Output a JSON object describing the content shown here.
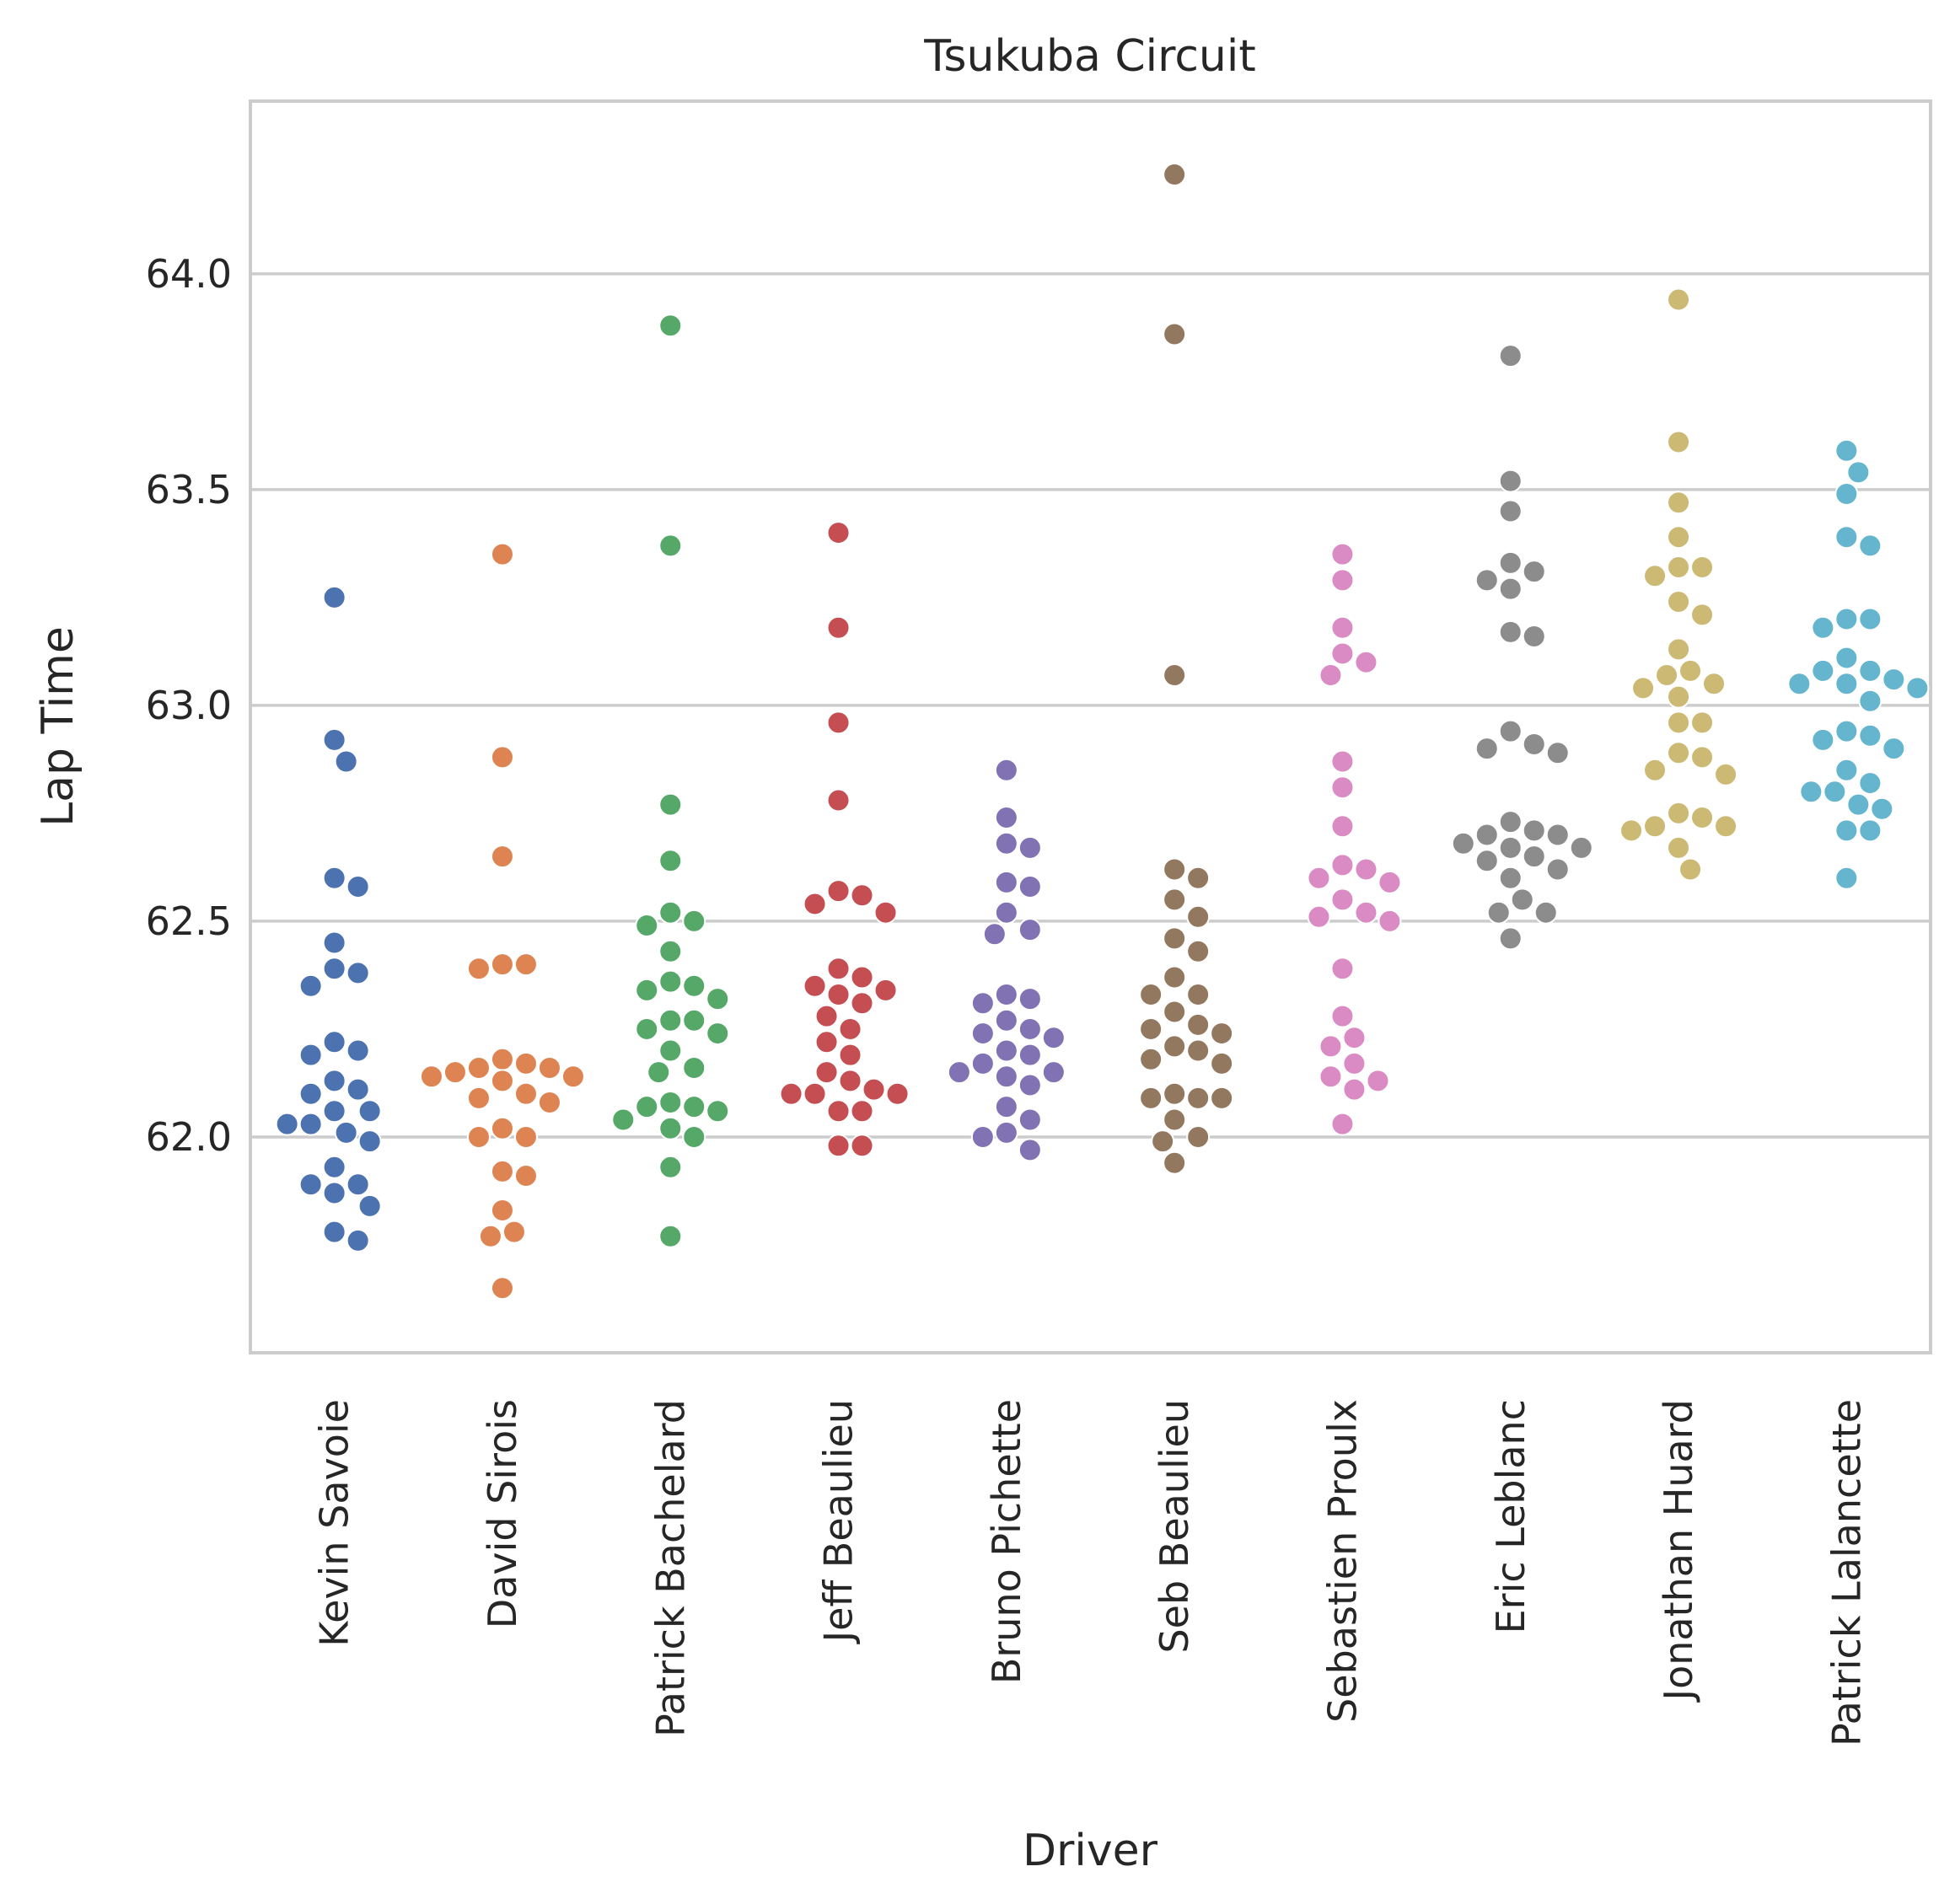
{
  "chart_data": {
    "type": "scatter",
    "title": "Tsukuba Circuit",
    "xlabel": "Driver",
    "ylabel": "Lap Time",
    "ylim": [
      61.5,
      64.4
    ],
    "yticks": [
      "62.0",
      "62.5",
      "63.0",
      "63.5",
      "64.0"
    ],
    "grid": "horizontal",
    "categories": [
      "Kevin Savoie",
      "David Sirois",
      "Patrick Bachelard",
      "Jeff Beaulieu",
      "Bruno Pichette",
      "Seb  Beaulieu",
      "Sebastien Proulx",
      "Eric Leblanc",
      "Jonathan Huard",
      "Patrick Lalancette"
    ],
    "colors": [
      "#4c72b0",
      "#dd8452",
      "#55a868",
      "#c44e52",
      "#8172b3",
      "#937860",
      "#da8bc3",
      "#8c8c8c",
      "#ccb974",
      "#64b5cd"
    ],
    "series": [
      {
        "values": [
          63.25,
          62.92,
          62.87,
          62.6,
          62.58,
          62.45,
          62.39,
          62.38,
          62.35,
          62.22,
          62.2,
          62.19,
          62.13,
          62.11,
          62.1,
          62.06,
          62.06,
          62.03,
          62.03,
          62.01,
          61.99,
          61.93,
          61.89,
          61.89,
          61.87,
          61.84,
          61.78,
          61.76
        ]
      },
      {
        "values": [
          63.35,
          62.88,
          62.65,
          62.4,
          62.4,
          62.39,
          62.18,
          62.17,
          62.16,
          62.16,
          62.15,
          62.14,
          62.14,
          62.13,
          62.1,
          62.09,
          62.08,
          62.02,
          62.0,
          62.0,
          61.92,
          61.91,
          61.83,
          61.78,
          61.77,
          61.65
        ]
      },
      {
        "values": [
          63.88,
          63.37,
          62.77,
          62.64,
          62.52,
          62.5,
          62.49,
          62.43,
          62.36,
          62.35,
          62.34,
          62.32,
          62.27,
          62.27,
          62.25,
          62.24,
          62.2,
          62.16,
          62.15,
          62.08,
          62.07,
          62.07,
          62.06,
          62.04,
          62.02,
          62.0,
          61.93,
          61.77
        ]
      },
      {
        "values": [
          63.4,
          63.18,
          62.96,
          62.78,
          62.57,
          62.56,
          62.54,
          62.52,
          62.39,
          62.37,
          62.35,
          62.34,
          62.33,
          62.31,
          62.28,
          62.25,
          62.22,
          62.19,
          62.15,
          62.13,
          62.11,
          62.1,
          62.1,
          62.1,
          62.06,
          62.06,
          61.98,
          61.98
        ]
      },
      {
        "values": [
          62.85,
          62.74,
          62.68,
          62.67,
          62.59,
          62.58,
          62.52,
          62.48,
          62.47,
          62.33,
          62.32,
          62.31,
          62.27,
          62.25,
          62.24,
          62.23,
          62.2,
          62.19,
          62.17,
          62.15,
          62.15,
          62.14,
          62.12,
          62.07,
          62.04,
          62.01,
          62.0,
          61.97
        ]
      },
      {
        "values": [
          64.23,
          63.86,
          63.07,
          62.62,
          62.6,
          62.55,
          62.51,
          62.46,
          62.43,
          62.37,
          62.33,
          62.33,
          62.29,
          62.26,
          62.25,
          62.24,
          62.21,
          62.2,
          62.18,
          62.17,
          62.1,
          62.09,
          62.09,
          62.09,
          62.04,
          62.0,
          61.99,
          61.94
        ]
      },
      {
        "values": [
          63.35,
          63.29,
          63.18,
          63.12,
          63.1,
          63.07,
          62.87,
          62.81,
          62.72,
          62.63,
          62.62,
          62.6,
          62.59,
          62.55,
          62.52,
          62.51,
          62.5,
          62.39,
          62.28,
          62.23,
          62.21,
          62.17,
          62.14,
          62.13,
          62.11,
          62.03
        ]
      },
      {
        "values": [
          63.81,
          63.52,
          63.45,
          63.33,
          63.31,
          63.29,
          63.27,
          63.17,
          63.16,
          62.94,
          62.91,
          62.9,
          62.89,
          62.73,
          62.71,
          62.7,
          62.7,
          62.68,
          62.67,
          62.67,
          62.65,
          62.64,
          62.62,
          62.6,
          62.55,
          62.52,
          62.52,
          62.46
        ]
      },
      {
        "values": [
          63.94,
          63.61,
          63.47,
          63.39,
          63.32,
          63.32,
          63.3,
          63.24,
          63.21,
          63.13,
          63.08,
          63.07,
          63.05,
          63.04,
          63.02,
          62.96,
          62.96,
          62.89,
          62.88,
          62.85,
          62.84,
          62.75,
          62.74,
          62.72,
          62.72,
          62.71,
          62.67,
          62.62
        ]
      },
      {
        "values": [
          63.59,
          63.54,
          63.49,
          63.39,
          63.37,
          63.2,
          63.2,
          63.18,
          63.11,
          63.08,
          63.08,
          63.06,
          63.05,
          63.05,
          63.04,
          63.01,
          62.94,
          62.93,
          62.92,
          62.9,
          62.85,
          62.82,
          62.8,
          62.8,
          62.77,
          62.76,
          62.71,
          62.71,
          62.6
        ]
      }
    ]
  }
}
